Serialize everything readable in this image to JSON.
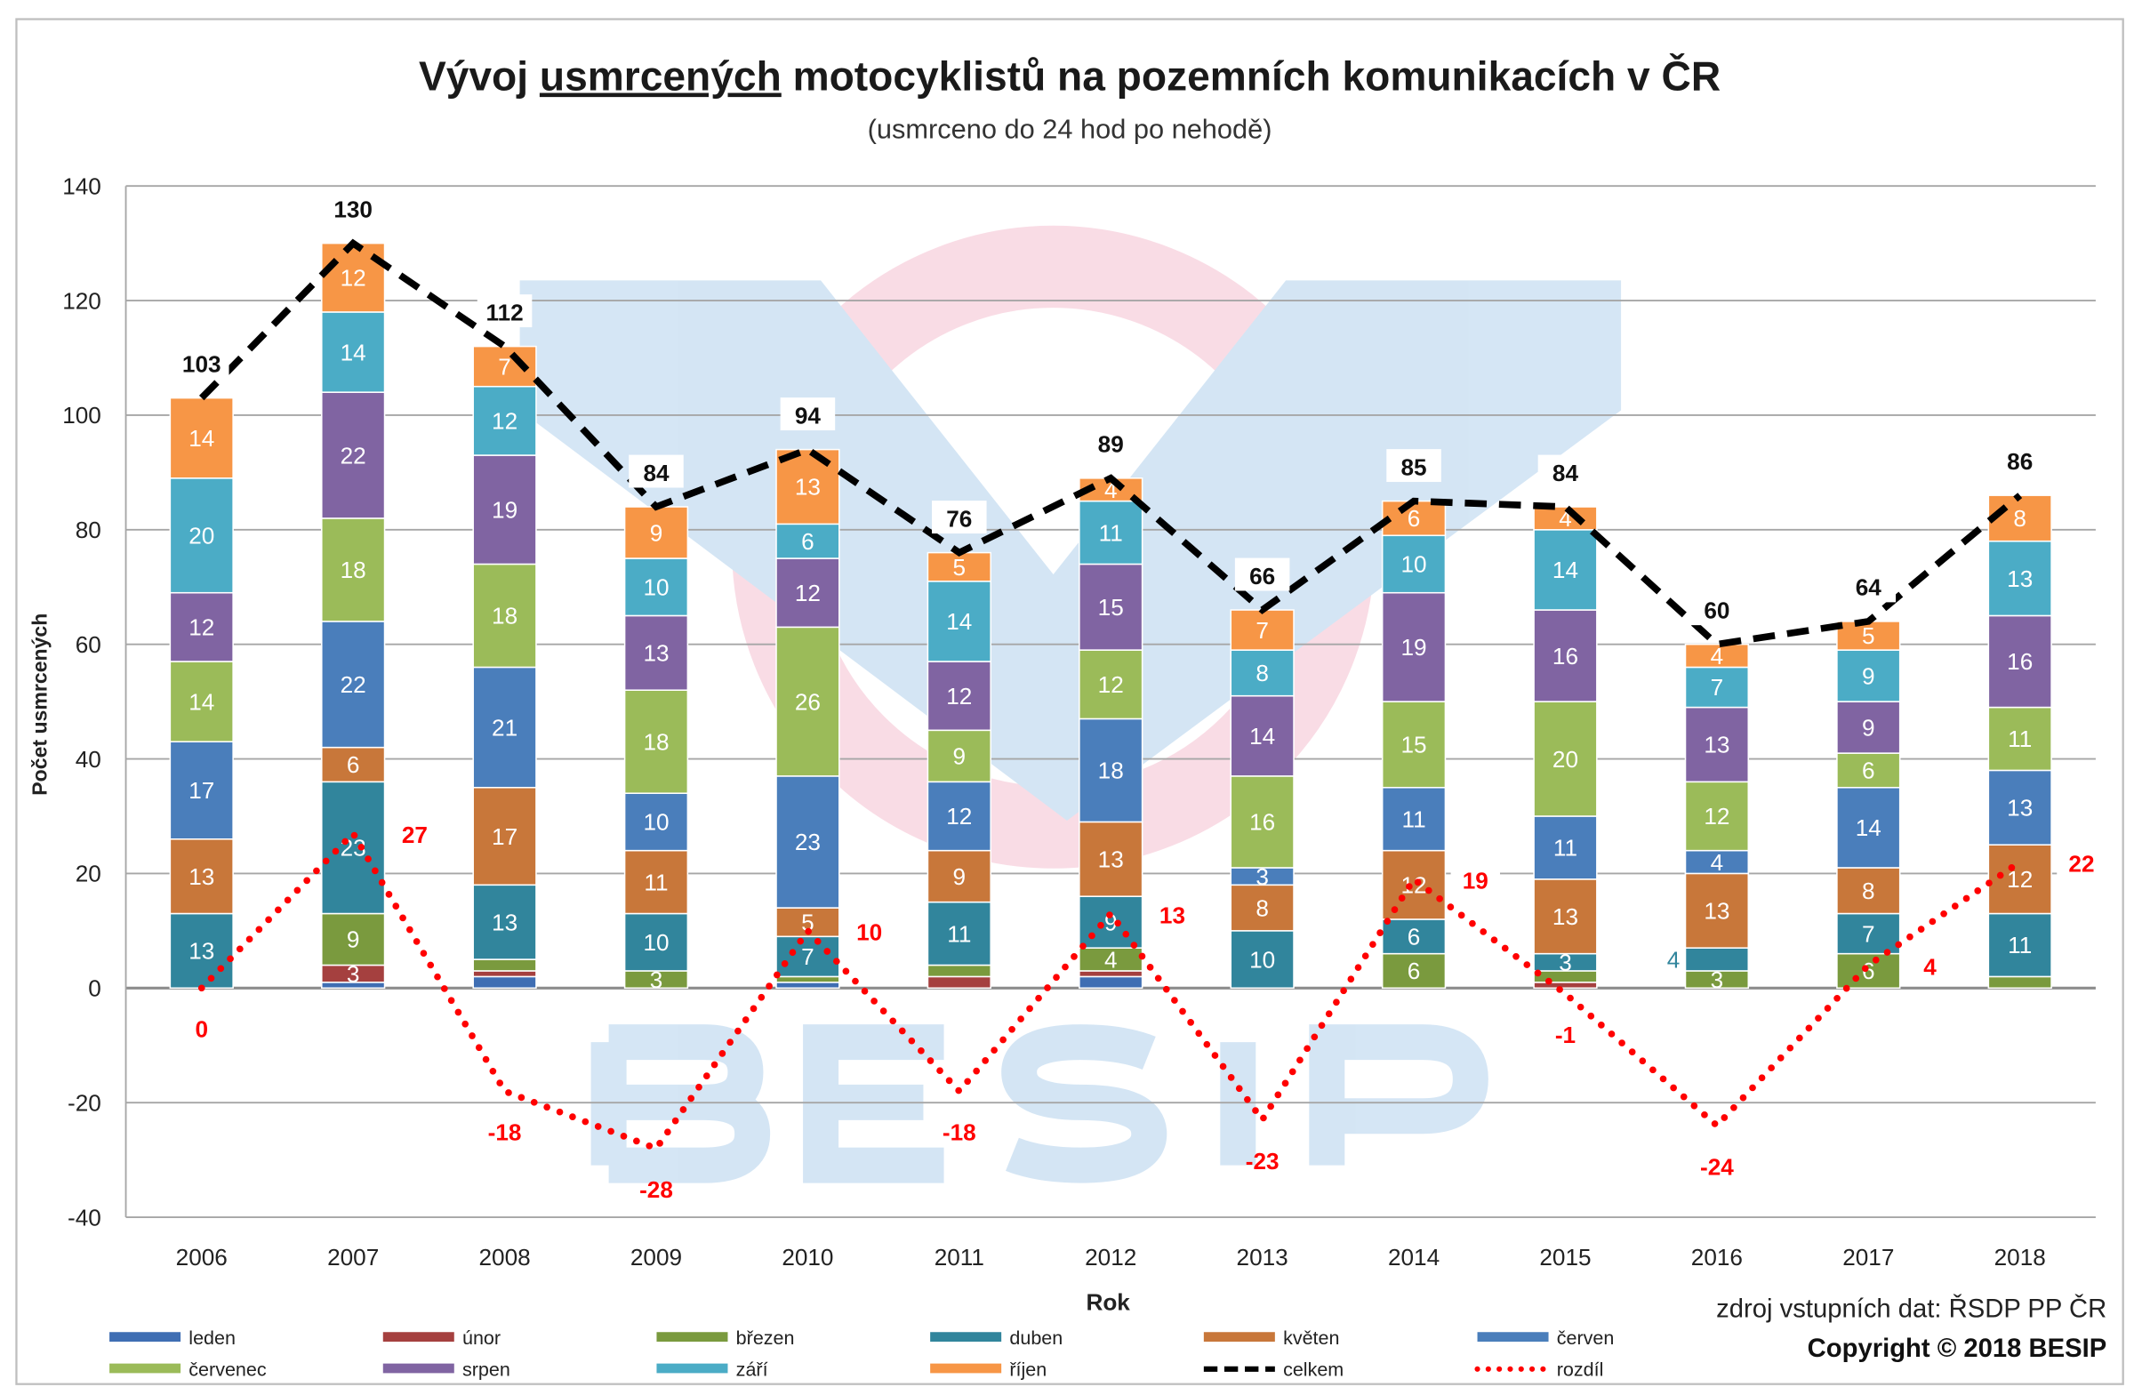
{
  "chart_data": {
    "type": "bar",
    "stacked": true,
    "title_prefix": "Vývoj ",
    "title_underlined": "usmrcených",
    "title_suffix": " motocyklistů na pozemních komunikacích v ČR",
    "subtitle": "(usmrceno do 24 hod po nehodě)",
    "xlabel": "Rok",
    "ylabel": "Počet usmrcených",
    "ylim": [
      -40,
      140
    ],
    "yticks": [
      -40,
      -20,
      0,
      20,
      40,
      60,
      80,
      100,
      120,
      140
    ],
    "grid": true,
    "legend_position": "bottom",
    "categories": [
      "2006",
      "2007",
      "2008",
      "2009",
      "2010",
      "2011",
      "2012",
      "2013",
      "2014",
      "2015",
      "2016",
      "2017",
      "2018"
    ],
    "series": [
      {
        "name": "leden",
        "color": "#3f6eb3",
        "values": [
          0,
          1,
          2,
          0,
          1,
          0,
          2,
          0,
          0,
          0,
          0,
          0,
          0
        ]
      },
      {
        "name": "únor",
        "color": "#a5403f",
        "values": [
          0,
          3,
          1,
          0,
          0,
          2,
          1,
          0,
          0,
          1,
          0,
          0,
          0
        ]
      },
      {
        "name": "březen",
        "color": "#7a9a3e",
        "values": [
          0,
          9,
          2,
          3,
          1,
          2,
          4,
          0,
          6,
          2,
          3,
          6,
          2
        ]
      },
      {
        "name": "duben",
        "color": "#31859c",
        "values": [
          13,
          23,
          13,
          10,
          7,
          11,
          9,
          10,
          6,
          3,
          4,
          7,
          11
        ]
      },
      {
        "name": "květen",
        "color": "#c8773a",
        "values": [
          13,
          6,
          17,
          11,
          5,
          9,
          13,
          8,
          12,
          13,
          13,
          8,
          12
        ]
      },
      {
        "name": "červen",
        "color": "#4a7ebb",
        "values": [
          17,
          22,
          21,
          10,
          23,
          12,
          18,
          3,
          11,
          11,
          4,
          14,
          13
        ]
      },
      {
        "name": "červenec",
        "color": "#9bbb59",
        "values": [
          14,
          18,
          18,
          18,
          26,
          9,
          12,
          16,
          15,
          20,
          12,
          6,
          11
        ]
      },
      {
        "name": "srpen",
        "color": "#8064a2",
        "values": [
          12,
          22,
          19,
          13,
          12,
          12,
          15,
          14,
          19,
          16,
          13,
          9,
          16
        ]
      },
      {
        "name": "září",
        "color": "#4bacc6",
        "values": [
          20,
          14,
          12,
          10,
          6,
          14,
          11,
          8,
          10,
          14,
          7,
          9,
          13
        ]
      },
      {
        "name": "říjen",
        "color": "#f79646",
        "values": [
          14,
          12,
          7,
          9,
          13,
          5,
          4,
          7,
          6,
          4,
          4,
          5,
          8
        ]
      }
    ],
    "lines": [
      {
        "name": "celkem",
        "color": "#000000",
        "style": "dashed",
        "values": [
          103,
          130,
          112,
          84,
          94,
          76,
          89,
          66,
          85,
          84,
          60,
          64,
          86
        ]
      },
      {
        "name": "rozdíl",
        "color": "#ff0000",
        "style": "dotted",
        "values": [
          0,
          27,
          -18,
          -28,
          10,
          -18,
          13,
          -23,
          19,
          -1,
          -24,
          4,
          22
        ]
      }
    ]
  },
  "footer": {
    "source": "zdroj vstupních dat: ŘSDP PP ČR",
    "copyright": "Copyright © 2018 BESIP"
  },
  "watermark": {
    "logo_text": "BESIP"
  }
}
